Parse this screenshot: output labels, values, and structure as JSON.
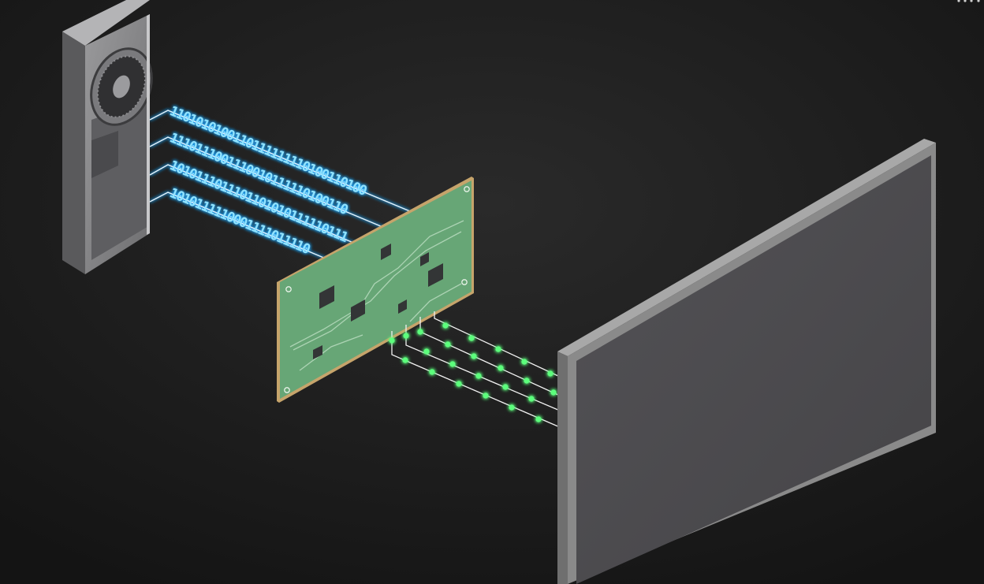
{
  "diagram": {
    "colors": {
      "background": "#1b1b1b",
      "binary_glow": "#1fa8ff",
      "binary_text": "#8fe3ff",
      "signal_dot": "#35e85a",
      "pcb": "#67a676",
      "monitor_frame": "#8a8a8a",
      "monitor_screen": "#4d4c4f"
    },
    "binary_streams": [
      "1101010100110111111110100110100",
      "1110111001110010111110100110",
      "1010111011101101010111110111",
      "1010111110001111011110"
    ],
    "components": {
      "source": "graphics-card",
      "converter": "circuit-board",
      "output": "monitor"
    }
  }
}
